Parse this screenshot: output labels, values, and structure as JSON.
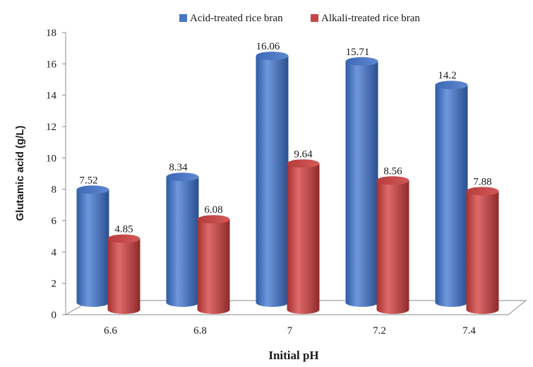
{
  "chart_data": {
    "type": "bar",
    "title": "",
    "xlabel": "Initial pH",
    "ylabel": "Glutamic acid (g/L)",
    "categories": [
      "6.6",
      "6.8",
      "7",
      "7.2",
      "7.4"
    ],
    "series": [
      {
        "name": "Acid-treated rice bran",
        "values": [
          7.52,
          8.34,
          16.06,
          15.71,
          14.2
        ],
        "labels": [
          "7.52",
          "8.34",
          "16.06",
          "15.71",
          "14.2"
        ],
        "color": "#4a76c2"
      },
      {
        "name": "Alkali-treated rice bran",
        "values": [
          4.85,
          6.08,
          9.64,
          8.56,
          7.88
        ],
        "labels": [
          "4.85",
          "6.08",
          "9.64",
          "8.56",
          "7.88"
        ],
        "color": "#c94545"
      }
    ],
    "ylim": [
      0,
      18
    ],
    "yticks": [
      0,
      2,
      4,
      6,
      8,
      10,
      12,
      14,
      16,
      18
    ],
    "grid": false,
    "legend": "top-center",
    "style": "3d-cylinder"
  }
}
